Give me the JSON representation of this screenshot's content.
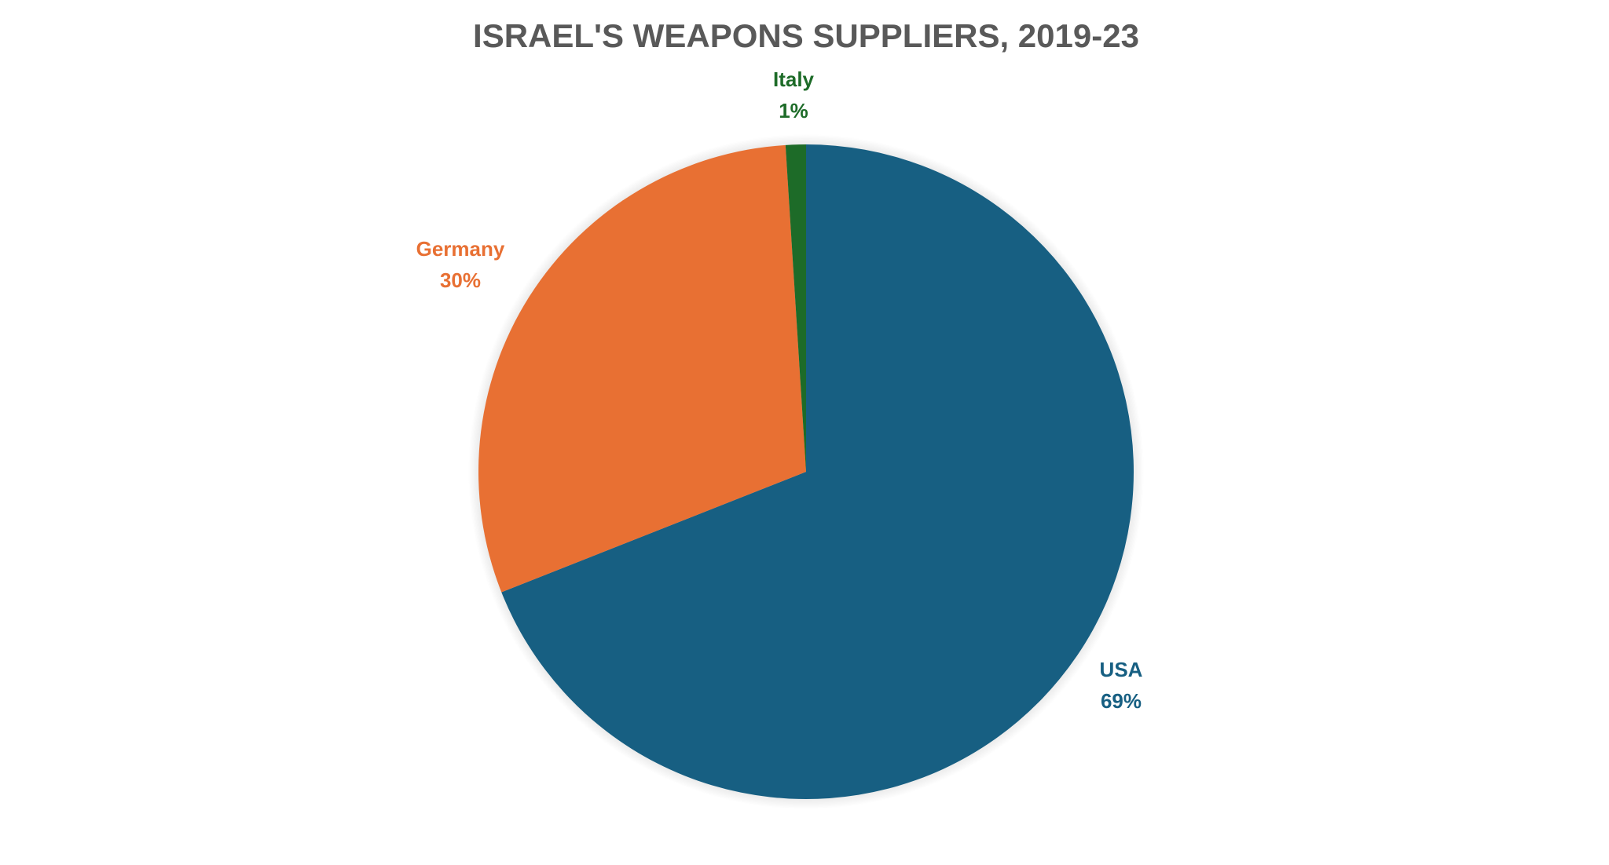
{
  "chart_data": {
    "type": "pie",
    "title": "ISRAEL'S  WEAPONS SUPPLIERS, 2019-23",
    "slices": [
      {
        "label": "USA",
        "value": 69,
        "value_label": "69%",
        "color": "#175f82"
      },
      {
        "label": "Germany",
        "value": 30,
        "value_label": "30%",
        "color": "#e87033"
      },
      {
        "label": "Italy",
        "value": 1,
        "value_label": "1%",
        "color": "#1d6b28"
      }
    ],
    "title_color": "#595959",
    "legend": "none"
  }
}
